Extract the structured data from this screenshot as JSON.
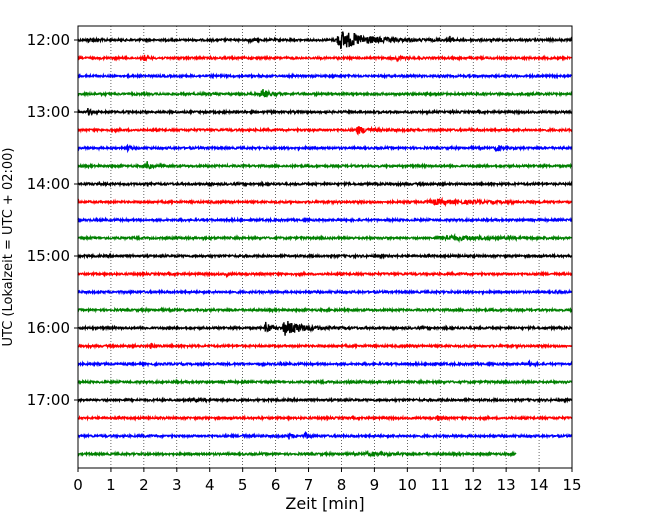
{
  "chart_data": {
    "type": "line",
    "title": "",
    "xlabel": "Zeit  [min]",
    "ylabel": "UTC (Lokalzeit = UTC + 02:00)",
    "xlim": [
      0,
      15
    ],
    "x_ticks": [
      "0",
      "1",
      "2",
      "3",
      "4",
      "5",
      "6",
      "7",
      "8",
      "9",
      "10",
      "11",
      "12",
      "13",
      "14",
      "15"
    ],
    "y_tick_labels": [
      "12:00",
      "13:00",
      "14:00",
      "15:00",
      "16:00",
      "17:00"
    ],
    "grid": "vertical dotted at each minute",
    "series_colors": [
      "#000000",
      "#ff0000",
      "#0000ff",
      "#008000"
    ],
    "traces": [
      {
        "start": "12:00",
        "end_min": 15,
        "events": [
          [
            0.3,
            0.5,
            0.2
          ],
          [
            5.2,
            0.5,
            0.1
          ],
          [
            8.0,
            2.5,
            0.8
          ],
          [
            11.3,
            1.4,
            0.05
          ]
        ]
      },
      {
        "start": "12:15",
        "end_min": 15,
        "events": [
          [
            2.0,
            0.9,
            0.08
          ],
          [
            9.7,
            0.8,
            0.1
          ]
        ]
      },
      {
        "start": "12:30",
        "end_min": 15,
        "events": []
      },
      {
        "start": "12:45",
        "end_min": 15,
        "events": [
          [
            5.6,
            1.3,
            0.2
          ]
        ]
      },
      {
        "start": "13:00",
        "end_min": 15,
        "events": [
          [
            0.3,
            0.9,
            0.08
          ]
        ]
      },
      {
        "start": "13:15",
        "end_min": 15,
        "events": [
          [
            8.5,
            1.0,
            0.3
          ]
        ]
      },
      {
        "start": "13:30",
        "end_min": 15,
        "events": [
          [
            1.5,
            0.8,
            0.08
          ],
          [
            12.7,
            0.9,
            0.15
          ]
        ]
      },
      {
        "start": "13:45",
        "end_min": 15,
        "events": [
          [
            2.1,
            1.8,
            0.08
          ]
        ]
      },
      {
        "start": "14:00",
        "end_min": 15,
        "events": []
      },
      {
        "start": "14:15",
        "end_min": 15,
        "events": [
          [
            10.8,
            0.6,
            1.2
          ]
        ]
      },
      {
        "start": "14:30",
        "end_min": 15,
        "events": []
      },
      {
        "start": "14:45",
        "end_min": 15,
        "events": [
          [
            11.2,
            0.6,
            1.2
          ]
        ]
      },
      {
        "start": "15:00",
        "end_min": 15,
        "events": []
      },
      {
        "start": "15:15",
        "end_min": 15,
        "events": [
          [
            4.5,
            0.5,
            0.06
          ]
        ]
      },
      {
        "start": "15:30",
        "end_min": 15,
        "events": [
          [
            14.5,
            0.5,
            0.06
          ]
        ]
      },
      {
        "start": "15:45",
        "end_min": 15,
        "events": []
      },
      {
        "start": "16:00",
        "end_min": 15,
        "events": [
          [
            5.7,
            2.2,
            0.1
          ],
          [
            6.3,
            2.0,
            0.5
          ]
        ]
      },
      {
        "start": "16:15",
        "end_min": 15,
        "events": [
          [
            2.2,
            0.7,
            0.06
          ]
        ]
      },
      {
        "start": "16:30",
        "end_min": 15,
        "events": [
          [
            10.7,
            0.5,
            0.06
          ],
          [
            13.7,
            0.8,
            0.05
          ]
        ]
      },
      {
        "start": "16:45",
        "end_min": 15,
        "events": []
      },
      {
        "start": "17:00",
        "end_min": 15,
        "events": [
          [
            3.5,
            0.4,
            0.2
          ]
        ]
      },
      {
        "start": "17:15",
        "end_min": 15,
        "events": [
          [
            10.9,
            0.8,
            0.1
          ]
        ]
      },
      {
        "start": "17:30",
        "end_min": 15,
        "events": [
          [
            5.0,
            0.4,
            0.1
          ],
          [
            6.4,
            0.8,
            0.1
          ],
          [
            6.9,
            0.9,
            0.08
          ]
        ]
      },
      {
        "start": "17:45",
        "end_min": 13.3,
        "events": [
          [
            8.8,
            0.4,
            0.5
          ]
        ]
      }
    ]
  }
}
